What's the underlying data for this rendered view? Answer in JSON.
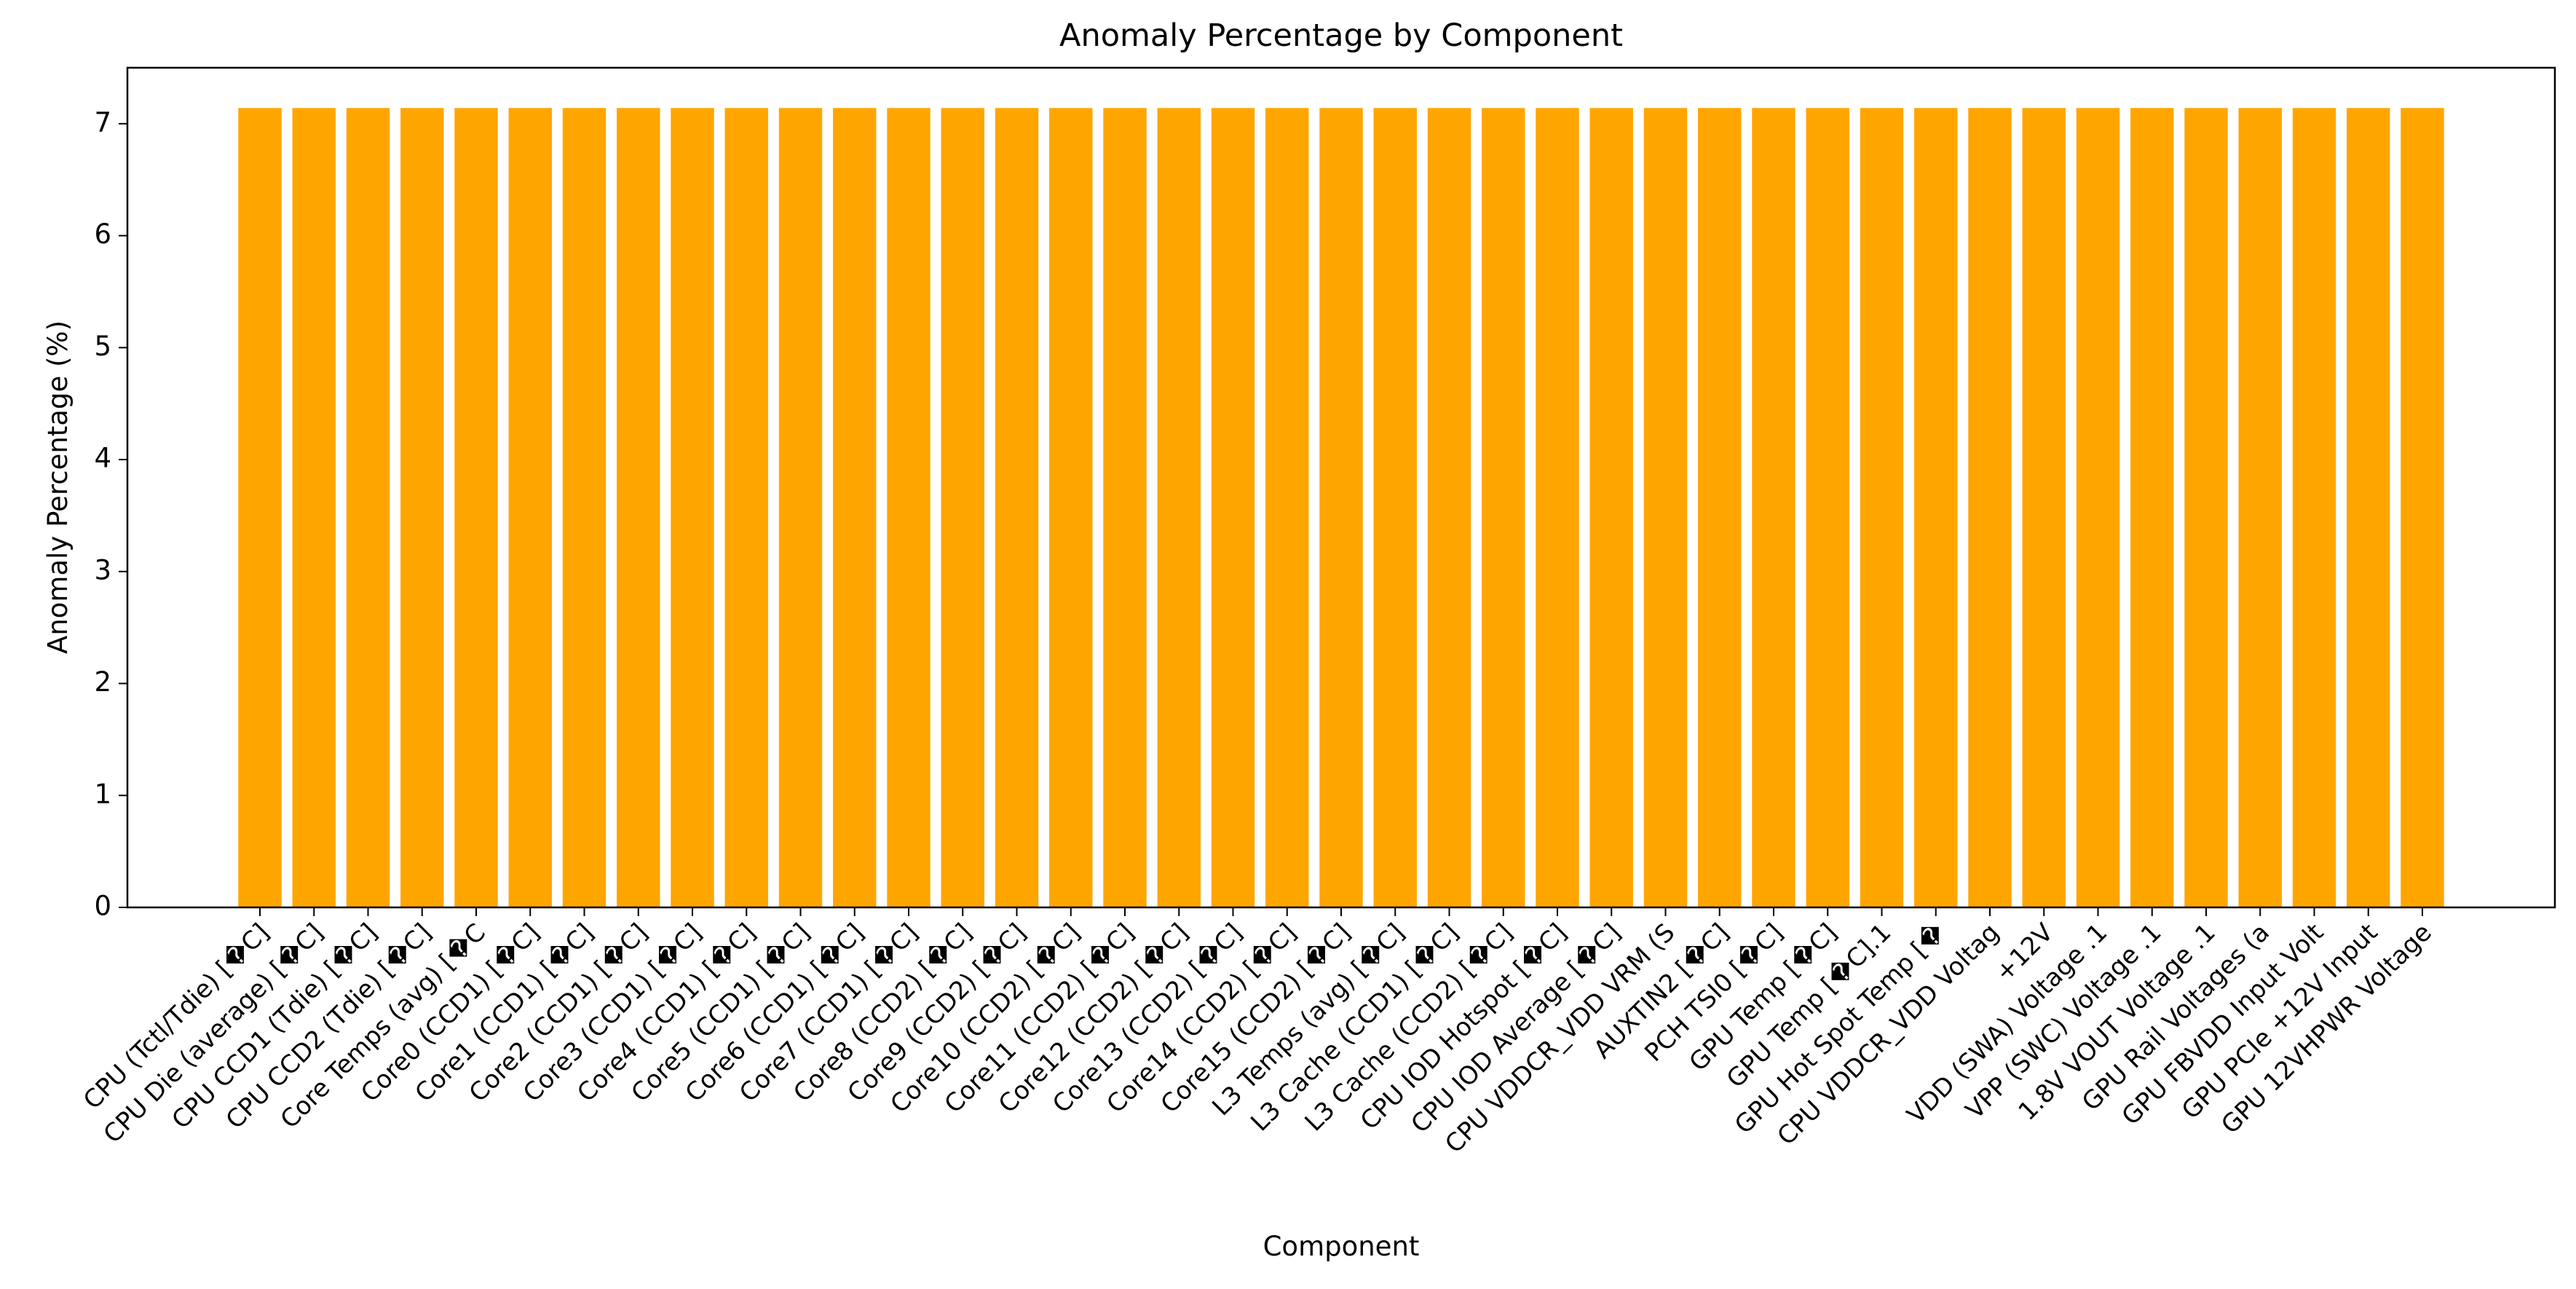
{
  "chart_data": {
    "type": "bar",
    "title": "Anomaly Percentage by Component",
    "xlabel": "Component",
    "ylabel": "Anomaly Percentage (%)",
    "ylim": [
      0,
      7.5
    ],
    "yticks": [
      "0",
      "1",
      "2",
      "3",
      "4",
      "5",
      "6",
      "7"
    ],
    "grid": false,
    "legend": "none",
    "bar_color": "#FFA500",
    "categories": [
      "CPU (Tctl/Tdie) [�C]",
      "CPU Die (average) [�C]",
      "CPU CCD1 (Tdie) [�C]",
      "CPU CCD2 (Tdie) [�C]",
      "Core Temps (avg) [�C",
      "Core0 (CCD1) [�C]",
      "Core1 (CCD1) [�C]",
      "Core2 (CCD1) [�C]",
      "Core3 (CCD1) [�C]",
      "Core4 (CCD1) [�C]",
      "Core5 (CCD1) [�C]",
      "Core6 (CCD1) [�C]",
      "Core7 (CCD1) [�C]",
      "Core8 (CCD2) [�C]",
      "Core9 (CCD2) [�C]",
      "Core10 (CCD2) [�C]",
      "Core11 (CCD2) [�C]",
      "Core12 (CCD2) [�C]",
      "Core13 (CCD2) [�C]",
      "Core14 (CCD2) [�C]",
      "Core15 (CCD2) [�C]",
      "L3 Temps (avg) [�C]",
      "L3 Cache (CCD1) [�C]",
      "L3 Cache (CCD2) [�C]",
      "CPU IOD Hotspot [�C]",
      "CPU IOD Average [�C]",
      "CPU VDDCR_VDD VRM (S",
      "AUXTIN2 [�C]",
      "PCH TSI0 [�C]",
      "GPU Temp [�C]",
      "GPU Temp [�C].1",
      "GPU Hot Spot Temp [�",
      "CPU VDDCR_VDD Voltag",
      "+12V",
      "VDD (SWA) Voltage .1",
      "VPP (SWC) Voltage .1",
      "1.8V VOUT Voltage .1",
      "GPU Rail Voltages (a",
      "GPU FBVDD Input Volt",
      "GPU PCIe +12V Input",
      "GPU 12VHPWR Voltage"
    ],
    "values": [
      7.14,
      7.14,
      7.14,
      7.14,
      7.14,
      7.14,
      7.14,
      7.14,
      7.14,
      7.14,
      7.14,
      7.14,
      7.14,
      7.14,
      7.14,
      7.14,
      7.14,
      7.14,
      7.14,
      7.14,
      7.14,
      7.14,
      7.14,
      7.14,
      7.14,
      7.14,
      7.14,
      7.14,
      7.14,
      7.14,
      7.14,
      7.14,
      7.14,
      7.14,
      7.14,
      7.14,
      7.14,
      7.14,
      7.14,
      7.14,
      7.14
    ]
  }
}
